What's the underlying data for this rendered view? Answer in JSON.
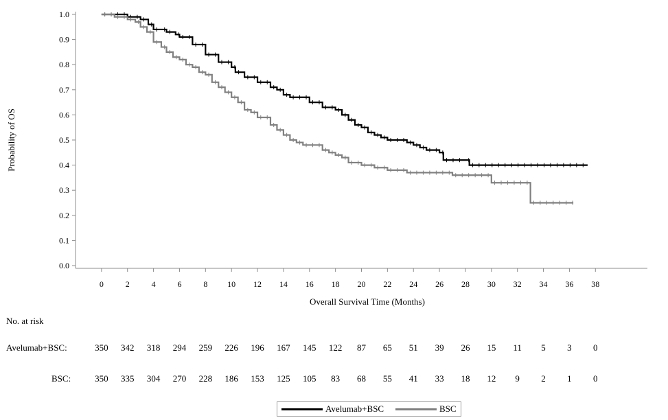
{
  "chart_data": {
    "type": "line",
    "xlabel": "Overall Survival Time (Months)",
    "ylabel": "Probability of OS",
    "xlim": [
      -2,
      42
    ],
    "ylim": [
      0,
      1.0
    ],
    "x_ticks": [
      0,
      2,
      4,
      6,
      8,
      10,
      12,
      14,
      16,
      18,
      20,
      22,
      24,
      26,
      28,
      30,
      32,
      34,
      36,
      38
    ],
    "y_ticks": [
      0.0,
      0.1,
      0.2,
      0.3,
      0.4,
      0.5,
      0.6,
      0.7,
      0.8,
      0.9,
      1.0
    ],
    "grid": false,
    "legend_position": "bottom-center",
    "series": [
      {
        "name": "Avelumab+BSC",
        "color": "#000000",
        "points": [
          [
            0,
            1.0
          ],
          [
            1,
            1.0
          ],
          [
            2,
            0.99
          ],
          [
            2.8,
            0.99
          ],
          [
            3,
            0.98
          ],
          [
            3.6,
            0.96
          ],
          [
            4,
            0.94
          ],
          [
            4.6,
            0.94
          ],
          [
            5,
            0.93
          ],
          [
            5.7,
            0.92
          ],
          [
            6,
            0.91
          ],
          [
            7,
            0.88
          ],
          [
            8,
            0.84
          ],
          [
            9,
            0.81
          ],
          [
            10,
            0.79
          ],
          [
            10.3,
            0.77
          ],
          [
            11,
            0.75
          ],
          [
            12,
            0.73
          ],
          [
            13,
            0.71
          ],
          [
            13.5,
            0.7
          ],
          [
            14,
            0.68
          ],
          [
            14.5,
            0.67
          ],
          [
            15,
            0.67
          ],
          [
            16,
            0.65
          ],
          [
            17,
            0.63
          ],
          [
            18,
            0.62
          ],
          [
            18.5,
            0.6
          ],
          [
            19,
            0.58
          ],
          [
            19.5,
            0.56
          ],
          [
            20,
            0.55
          ],
          [
            20.5,
            0.53
          ],
          [
            21,
            0.52
          ],
          [
            21.5,
            0.51
          ],
          [
            22,
            0.5
          ],
          [
            23,
            0.5
          ],
          [
            23.5,
            0.49
          ],
          [
            24,
            0.48
          ],
          [
            24.5,
            0.47
          ],
          [
            25,
            0.46
          ],
          [
            26,
            0.45
          ],
          [
            26.3,
            0.42
          ],
          [
            28,
            0.42
          ],
          [
            28.3,
            0.4
          ],
          [
            37.4,
            0.4
          ]
        ]
      },
      {
        "name": "BSC",
        "color": "#808080",
        "points": [
          [
            0,
            1.0
          ],
          [
            1,
            0.99
          ],
          [
            2,
            0.98
          ],
          [
            2.6,
            0.97
          ],
          [
            3,
            0.95
          ],
          [
            3.5,
            0.93
          ],
          [
            4,
            0.89
          ],
          [
            4.6,
            0.87
          ],
          [
            5,
            0.85
          ],
          [
            5.5,
            0.83
          ],
          [
            6,
            0.82
          ],
          [
            6.5,
            0.8
          ],
          [
            7,
            0.79
          ],
          [
            7.5,
            0.77
          ],
          [
            8,
            0.76
          ],
          [
            8.5,
            0.73
          ],
          [
            9,
            0.71
          ],
          [
            9.5,
            0.69
          ],
          [
            10,
            0.67
          ],
          [
            10.5,
            0.65
          ],
          [
            11,
            0.62
          ],
          [
            11.5,
            0.61
          ],
          [
            12,
            0.59
          ],
          [
            13,
            0.56
          ],
          [
            13.5,
            0.54
          ],
          [
            14,
            0.52
          ],
          [
            14.5,
            0.5
          ],
          [
            15,
            0.49
          ],
          [
            15.5,
            0.48
          ],
          [
            16,
            0.48
          ],
          [
            17,
            0.46
          ],
          [
            17.5,
            0.45
          ],
          [
            18,
            0.44
          ],
          [
            18.5,
            0.43
          ],
          [
            19,
            0.41
          ],
          [
            20,
            0.4
          ],
          [
            21,
            0.39
          ],
          [
            22,
            0.38
          ],
          [
            23,
            0.38
          ],
          [
            23.5,
            0.37
          ],
          [
            26,
            0.37
          ],
          [
            27,
            0.36
          ],
          [
            29,
            0.36
          ],
          [
            30,
            0.33
          ],
          [
            33,
            0.33
          ],
          [
            33,
            0.25
          ],
          [
            36.3,
            0.25
          ]
        ]
      }
    ],
    "legend": [
      "Avelumab+BSC",
      "BSC"
    ]
  },
  "risk_table": {
    "title": "No. at risk",
    "times": [
      0,
      2,
      4,
      6,
      8,
      10,
      12,
      14,
      16,
      18,
      20,
      22,
      24,
      26,
      28,
      30,
      32,
      34,
      36,
      38
    ],
    "rows": [
      {
        "label": "Avelumab+BSC:",
        "values": [
          "350",
          "342",
          "318",
          "294",
          "259",
          "226",
          "196",
          "167",
          "145",
          "122",
          "87",
          "65",
          "51",
          "39",
          "26",
          "15",
          "11",
          "5",
          "3",
          "0"
        ]
      },
      {
        "label": "BSC:",
        "values": [
          "350",
          "335",
          "304",
          "270",
          "228",
          "186",
          "153",
          "125",
          "105",
          "83",
          "68",
          "55",
          "41",
          "33",
          "18",
          "12",
          "9",
          "2",
          "1",
          "0"
        ]
      }
    ]
  }
}
